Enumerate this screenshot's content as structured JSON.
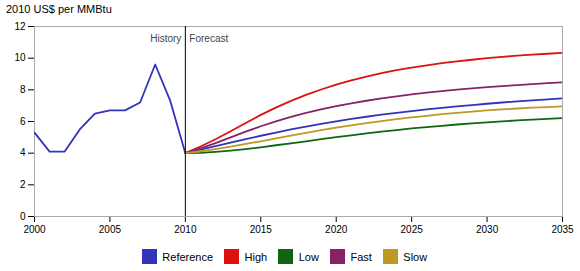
{
  "chart_data": {
    "type": "line",
    "y_label": "2010 US$ per MMBtu",
    "x": [
      2000,
      2001,
      2002,
      2003,
      2004,
      2005,
      2006,
      2007,
      2008,
      2009,
      2010,
      2011,
      2012,
      2013,
      2014,
      2015,
      2016,
      2017,
      2018,
      2019,
      2020,
      2021,
      2022,
      2023,
      2024,
      2025,
      2026,
      2027,
      2028,
      2029,
      2030,
      2031,
      2032,
      2033,
      2034,
      2035
    ],
    "series": [
      {
        "name": "Reference",
        "color": "#3333bb",
        "values": [
          5.3,
          4.1,
          4.1,
          5.5,
          6.5,
          6.7,
          6.7,
          7.2,
          9.6,
          7.3,
          4.0,
          4.22,
          4.44,
          4.66,
          4.88,
          5.1,
          5.3,
          5.5,
          5.68,
          5.85,
          6.01,
          6.16,
          6.3,
          6.43,
          6.55,
          6.66,
          6.76,
          6.86,
          6.95,
          7.04,
          7.12,
          7.2,
          7.27,
          7.34,
          7.4,
          7.46
        ]
      },
      {
        "name": "High",
        "color": "#dd1111",
        "values": [
          null,
          null,
          null,
          null,
          null,
          null,
          null,
          null,
          null,
          null,
          4.0,
          4.42,
          4.88,
          5.38,
          5.9,
          6.42,
          6.88,
          7.3,
          7.68,
          8.02,
          8.33,
          8.6,
          8.84,
          9.05,
          9.24,
          9.4,
          9.55,
          9.68,
          9.8,
          9.9,
          10.0,
          10.08,
          10.16,
          10.22,
          10.28,
          10.33
        ]
      },
      {
        "name": "Low",
        "color": "#116611",
        "values": [
          null,
          null,
          null,
          null,
          null,
          null,
          null,
          null,
          null,
          null,
          4.0,
          4.02,
          4.08,
          4.16,
          4.26,
          4.37,
          4.5,
          4.62,
          4.75,
          4.88,
          5.01,
          5.13,
          5.25,
          5.36,
          5.46,
          5.56,
          5.65,
          5.73,
          5.81,
          5.88,
          5.95,
          6.01,
          6.07,
          6.12,
          6.17,
          6.22
        ]
      },
      {
        "name": "Fast",
        "color": "#882266",
        "values": [
          null,
          null,
          null,
          null,
          null,
          null,
          null,
          null,
          null,
          null,
          4.0,
          4.3,
          4.64,
          5.0,
          5.36,
          5.7,
          6.01,
          6.29,
          6.54,
          6.76,
          6.97,
          7.15,
          7.31,
          7.46,
          7.59,
          7.71,
          7.82,
          7.92,
          8.01,
          8.09,
          8.17,
          8.24,
          8.3,
          8.36,
          8.42,
          8.47
        ]
      },
      {
        "name": "Slow",
        "color": "#bb9922",
        "values": [
          null,
          null,
          null,
          null,
          null,
          null,
          null,
          null,
          null,
          null,
          4.0,
          4.12,
          4.26,
          4.41,
          4.58,
          4.75,
          4.93,
          5.11,
          5.28,
          5.45,
          5.61,
          5.76,
          5.9,
          6.03,
          6.15,
          6.26,
          6.36,
          6.46,
          6.54,
          6.62,
          6.7,
          6.76,
          6.82,
          6.87,
          6.91,
          6.96
        ]
      }
    ],
    "vline": 2010,
    "annotations": [
      {
        "text": "History",
        "x": 2010,
        "y": 11.5,
        "side": "left"
      },
      {
        "text": "Forecast",
        "x": 2010,
        "y": 11.5,
        "side": "right"
      }
    ],
    "xlim": [
      2000,
      2035
    ],
    "xticks": [
      2000,
      2005,
      2010,
      2015,
      2020,
      2025,
      2030,
      2035
    ],
    "ylim": [
      0,
      12
    ],
    "yticks": [
      0,
      2,
      4,
      6,
      8,
      10,
      12
    ],
    "grid": false,
    "legend": "bottom"
  }
}
